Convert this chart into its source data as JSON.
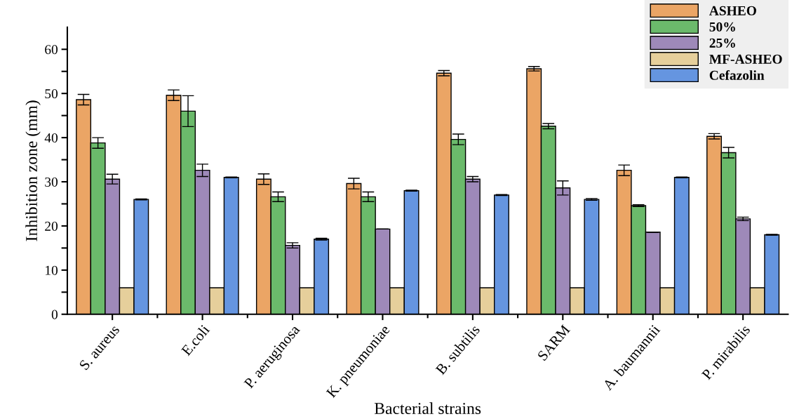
{
  "chart_data": {
    "type": "bar",
    "xlabel": "Bacterial strains",
    "ylabel": "Inhibition zone (mm)",
    "categories": [
      "S. aureus",
      "E.coli",
      "P. aeruginosa",
      "K. pneumoniae",
      "B. subtilis",
      "SARM",
      "A. baumannii",
      "P. mirabilis"
    ],
    "series": [
      {
        "name": "ASHEO",
        "color": "#eba565",
        "values": [
          48.6,
          49.6,
          30.6,
          29.6,
          54.6,
          55.6,
          32.6,
          40.3
        ],
        "errors": [
          1.2,
          1.2,
          1.2,
          1.2,
          0.6,
          0.5,
          1.2,
          0.6
        ]
      },
      {
        "name": "50%",
        "color": "#6bba6b",
        "values": [
          38.8,
          46.0,
          26.6,
          26.6,
          39.6,
          42.6,
          24.6,
          36.6
        ],
        "errors": [
          1.2,
          3.5,
          1.1,
          1.1,
          1.2,
          0.6,
          0.2,
          1.2
        ]
      },
      {
        "name": "25%",
        "color": "#9e89b9",
        "values": [
          30.6,
          32.6,
          15.6,
          19.3,
          30.6,
          28.6,
          18.6,
          21.6
        ],
        "errors": [
          1.1,
          1.4,
          0.6,
          null,
          0.6,
          1.6,
          null,
          0.4
        ]
      },
      {
        "name": "MF-ASHEO",
        "color": "#e6cf9b",
        "values": [
          6,
          6,
          6,
          6,
          6,
          6,
          6,
          6
        ]
      },
      {
        "name": "Cefazolin",
        "color": "#6595e0",
        "values": [
          26,
          31,
          17,
          28,
          27,
          26,
          31,
          18
        ],
        "errors": [
          0.1,
          0.1,
          0.2,
          0.1,
          0.1,
          0.2,
          0.1,
          0.1
        ]
      }
    ],
    "ylim": [
      0,
      65
    ],
    "yticks": [
      0,
      {
        "value": 5,
        "label": null
      },
      10,
      {
        "value": 15,
        "label": null
      },
      20,
      {
        "value": 25,
        "label": null
      },
      30,
      {
        "value": 35,
        "label": null
      },
      40,
      {
        "value": 45,
        "label": null
      },
      50,
      {
        "value": 55,
        "label": null
      },
      60
    ],
    "legend": "top right",
    "grid": false
  }
}
